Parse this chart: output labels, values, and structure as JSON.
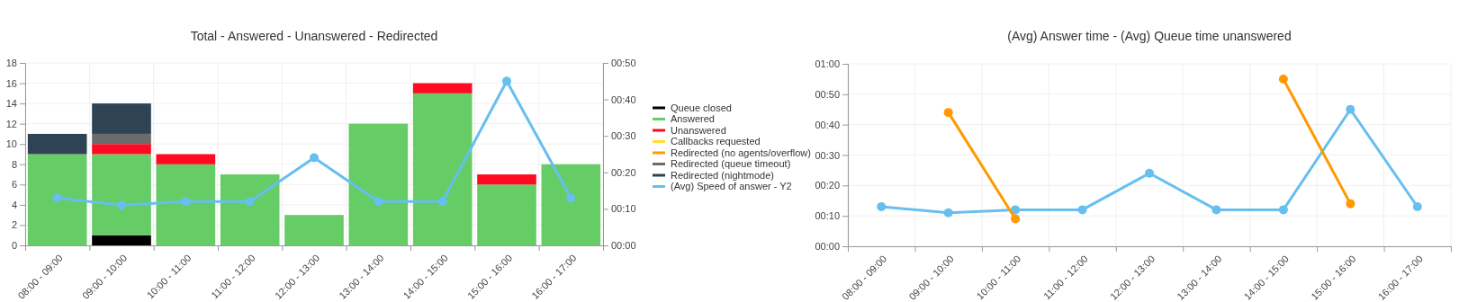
{
  "chart_data": [
    {
      "type": "bar",
      "title": "Total - Answered - Unanswered - Redirected",
      "stacked": true,
      "legend": "right",
      "grid": true,
      "marker": "circle",
      "categories": [
        "08:00 - 09:00",
        "09:00 - 10:00",
        "10:00 - 11:00",
        "11:00 - 12:00",
        "12:00 - 13:00",
        "13:00 - 14:00",
        "14:00 - 15:00",
        "15:00 - 16:00",
        "16:00 - 17:00"
      ],
      "ylim": [
        0,
        18
      ],
      "yticks": [
        0,
        2,
        4,
        6,
        8,
        10,
        12,
        14,
        16,
        18
      ],
      "y2lim": [
        0,
        50
      ],
      "y2ticks": [
        {
          "value": 0,
          "label": "00:00"
        },
        {
          "value": 10,
          "label": "00:10"
        },
        {
          "value": 20,
          "label": "00:20"
        },
        {
          "value": 30,
          "label": "00:30"
        },
        {
          "value": 40,
          "label": "00:40"
        },
        {
          "value": 50,
          "label": "00:50"
        }
      ],
      "series": [
        {
          "name": "Queue closed",
          "color": "#000000",
          "values": [
            0,
            1,
            0,
            0,
            0,
            0,
            0,
            0,
            0
          ]
        },
        {
          "name": "Answered",
          "color": "#66cc66",
          "values": [
            9,
            8,
            8,
            7,
            3,
            12,
            15,
            6,
            8
          ]
        },
        {
          "name": "Unanswered",
          "color": "#ff0a22",
          "values": [
            0,
            1,
            1,
            0,
            0,
            0,
            1,
            1,
            0
          ]
        },
        {
          "name": "Callbacks requested",
          "color": "#ffdd33",
          "values": [
            0,
            0,
            0,
            0,
            0,
            0,
            0,
            0,
            0
          ]
        },
        {
          "name": "Redirected (no agents/overflow)",
          "color": "#ff9900",
          "values": [
            0,
            0,
            0,
            0,
            0,
            0,
            0,
            0,
            0
          ]
        },
        {
          "name": "Redirected (queue timeout)",
          "color": "#6b6b6b",
          "values": [
            0,
            1,
            0,
            0,
            0,
            0,
            0,
            0,
            0
          ]
        },
        {
          "name": "Redirected (nightmode)",
          "color": "#2e4455",
          "values": [
            2,
            3,
            0,
            0,
            0,
            0,
            0,
            0,
            0
          ]
        },
        {
          "name": "(Avg) Speed of answer - Y2",
          "color": "#66bfef",
          "type": "line",
          "axis": "y2",
          "values": [
            13,
            11,
            12,
            12,
            24,
            12,
            12,
            45,
            13
          ]
        }
      ]
    },
    {
      "type": "line",
      "title": "(Avg) Answer time - (Avg) Queue time unanswered",
      "grid": true,
      "marker": "circle",
      "categories": [
        "08:00 - 09:00",
        "09:00 - 10:00",
        "10:00 - 11:00",
        "11:00 - 12:00",
        "12:00 - 13:00",
        "13:00 - 14:00",
        "14:00 - 15:00",
        "15:00 - 16:00",
        "16:00 - 17:00"
      ],
      "ylim": [
        0,
        60
      ],
      "yticks": [
        {
          "value": 0,
          "label": "00:00"
        },
        {
          "value": 10,
          "label": "00:10"
        },
        {
          "value": 20,
          "label": "00:20"
        },
        {
          "value": 30,
          "label": "00:30"
        },
        {
          "value": 40,
          "label": "00:40"
        },
        {
          "value": 50,
          "label": "00:50"
        },
        {
          "value": 60,
          "label": "01:00"
        }
      ],
      "series": [
        {
          "color": "#66bfef",
          "values": [
            13,
            11,
            12,
            12,
            24,
            12,
            12,
            45,
            13
          ]
        },
        {
          "color": "#ff9900",
          "values": [
            null,
            44,
            9,
            null,
            null,
            null,
            55,
            14,
            null
          ]
        }
      ]
    }
  ]
}
